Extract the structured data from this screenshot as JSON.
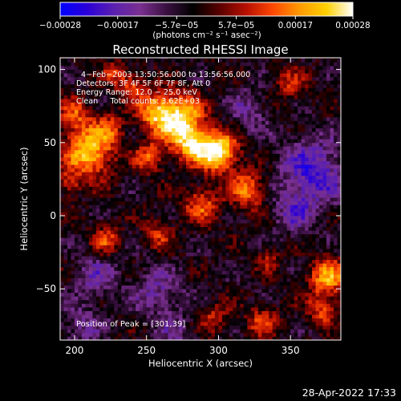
{
  "chart_data": {
    "type": "heatmap",
    "title": "Reconstructed RHESSI Image",
    "xlabel": "Heliocentric X (arcsec)",
    "ylabel": "Heliocentric Y (arcsec)",
    "xlim": [
      190,
      385
    ],
    "ylim": [
      -85,
      108
    ],
    "x_ticks": [
      200,
      250,
      300,
      350
    ],
    "x_tick_labels": [
      "200",
      "250",
      "300",
      "350"
    ],
    "y_ticks": [
      -50,
      0,
      50,
      100
    ],
    "y_tick_labels": [
      "−50",
      "0",
      "50",
      "100"
    ],
    "colorbar": {
      "range": [
        -0.00028,
        0.00028
      ],
      "tick_values": [
        -0.00028,
        -0.00017,
        -5.7e-05,
        5.7e-05,
        0.00017,
        0.00028
      ],
      "tick_labels": [
        "−0.00028",
        "−0.00017",
        "−5.7e−05",
        "5.7e−05",
        "0.00017",
        "0.00028"
      ],
      "unit_label": "(photons cm⁻² s⁻¹ asec⁻²)",
      "colors": [
        "#0000ff",
        "#2a00d8",
        "#5a20b0",
        "#7a3090",
        "#3a1040",
        "#000000",
        "#5a0000",
        "#b81000",
        "#ff4800",
        "#ff9a00",
        "#ffd000",
        "#ffffff"
      ]
    },
    "annotations": [
      "4−Feb−2003 13:50:56.000 to 13:56:56.000",
      "Detectors: 3F 4F 5F 6F 7F 8F, Att 0",
      "Energy Range: 12.0 − 25.0 keV",
      "Clean     Total counts: 3.62E+03"
    ],
    "peak_label": "Position of Peak = [301,39]",
    "peak": [
      301,
      39
    ],
    "grid": false,
    "sources": [
      {
        "x": 272,
        "y": 66,
        "sigma": 12,
        "amp": 1.0
      },
      {
        "x": 300,
        "y": 44,
        "sigma": 9,
        "amp": 1.1
      },
      {
        "x": 282,
        "y": 48,
        "sigma": 8,
        "amp": 0.7
      },
      {
        "x": 255,
        "y": 72,
        "sigma": 8,
        "amp": 0.55
      },
      {
        "x": 240,
        "y": 88,
        "sigma": 7,
        "amp": 0.45
      },
      {
        "x": 210,
        "y": 44,
        "sigma": 12,
        "amp": 0.85
      },
      {
        "x": 200,
        "y": 70,
        "sigma": 8,
        "amp": 0.45
      },
      {
        "x": 228,
        "y": 98,
        "sigma": 6,
        "amp": 0.4
      },
      {
        "x": 320,
        "y": 18,
        "sigma": 9,
        "amp": 0.6
      },
      {
        "x": 288,
        "y": 8,
        "sigma": 9,
        "amp": 0.5
      },
      {
        "x": 252,
        "y": 40,
        "sigma": 7,
        "amp": 0.5
      },
      {
        "x": 222,
        "y": -16,
        "sigma": 7,
        "amp": 0.45
      },
      {
        "x": 258,
        "y": -12,
        "sigma": 7,
        "amp": 0.4
      },
      {
        "x": 376,
        "y": -42,
        "sigma": 9,
        "amp": 0.7
      },
      {
        "x": 372,
        "y": -64,
        "sigma": 7,
        "amp": 0.5
      },
      {
        "x": 330,
        "y": -72,
        "sigma": 8,
        "amp": 0.4
      },
      {
        "x": 298,
        "y": -70,
        "sigma": 7,
        "amp": 0.35
      },
      {
        "x": 350,
        "y": 90,
        "sigma": 8,
        "amp": 0.35
      },
      {
        "x": 196,
        "y": 22,
        "sigma": 6,
        "amp": 0.35
      },
      {
        "x": 335,
        "y": -30,
        "sigma": 6,
        "amp": 0.3
      },
      {
        "x": 225,
        "y": 60,
        "sigma": 7,
        "amp": 0.4
      }
    ],
    "sinks": [
      {
        "x": 366,
        "y": 30,
        "sigma": 16,
        "amp": 0.55
      },
      {
        "x": 215,
        "y": -42,
        "sigma": 10,
        "amp": 0.35
      },
      {
        "x": 258,
        "y": -52,
        "sigma": 12,
        "amp": 0.35
      },
      {
        "x": 352,
        "y": 2,
        "sigma": 10,
        "amp": 0.35
      },
      {
        "x": 205,
        "y": -75,
        "sigma": 10,
        "amp": 0.3
      },
      {
        "x": 320,
        "y": 72,
        "sigma": 10,
        "amp": 0.3
      },
      {
        "x": 270,
        "y": -80,
        "sigma": 8,
        "amp": 0.25
      }
    ]
  },
  "footer": {
    "datetime": "28-Apr-2022 17:33"
  }
}
